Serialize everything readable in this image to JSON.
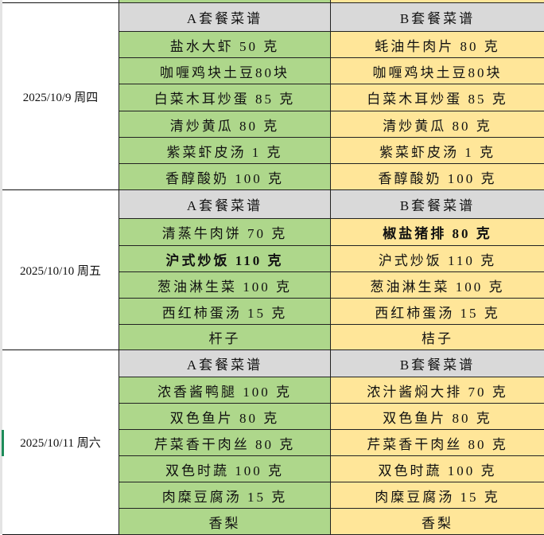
{
  "colors": {
    "set_a": "#aed78b",
    "set_b": "#ffe699",
    "header": "#d9d9d9",
    "selected_row_marker": "#1e8c5a"
  },
  "days": [
    {
      "date": "2025/10/9 周四",
      "header_a": "A套餐菜谱",
      "header_b": "B套餐菜谱",
      "rows": [
        {
          "a": "盐水大虾 50 克",
          "b": "蚝油牛肉片 80 克"
        },
        {
          "a": "咖喱鸡块土豆80块",
          "b": "咖喱鸡块土豆80块"
        },
        {
          "a": "白菜木耳炒蛋 85 克",
          "b": "白菜木耳炒蛋 85 克"
        },
        {
          "a": "清炒黄瓜 80 克",
          "b": "清炒黄瓜 80 克"
        },
        {
          "a": "紫菜虾皮汤 1 克",
          "b": "紫菜虾皮汤 1 克"
        },
        {
          "a": "香醇酸奶 100 克",
          "b": "香醇酸奶 100 克"
        }
      ]
    },
    {
      "date": "2025/10/10 周五",
      "header_a": "A套餐菜谱",
      "header_b": "B套餐菜谱",
      "rows": [
        {
          "a": "清蒸牛肉饼 70 克",
          "b": "椒盐猪排 80 克",
          "b_bold": true
        },
        {
          "a": "沪式炒饭 110 克",
          "b": "沪式炒饭 110 克",
          "a_bold": true
        },
        {
          "a": "葱油淋生菜 100 克",
          "b": "葱油淋生菜 100 克"
        },
        {
          "a": "西红柿蛋汤 15 克",
          "b": "西红柿蛋汤 15 克"
        },
        {
          "a": "杆子",
          "b": "桔子"
        }
      ]
    },
    {
      "date": "2025/10/11 周六",
      "header_a": "A套餐菜谱",
      "header_b": "B套餐菜谱",
      "rows": [
        {
          "a": "浓香酱鸭腿 100 克",
          "b": "浓汁酱焖大排 70 克"
        },
        {
          "a": "双色鱼片 80 克",
          "b": "双色鱼片 80 克"
        },
        {
          "a": "芹菜香干肉丝 80 克",
          "b": "芹菜香干肉丝 80 克"
        },
        {
          "a": "双色时蔬 100 克",
          "b": "双色时蔬 100 克"
        },
        {
          "a": "肉糜豆腐汤 15 克",
          "b": "肉糜豆腐汤 15 克"
        },
        {
          "a": "香梨",
          "b": "香梨"
        }
      ]
    }
  ]
}
